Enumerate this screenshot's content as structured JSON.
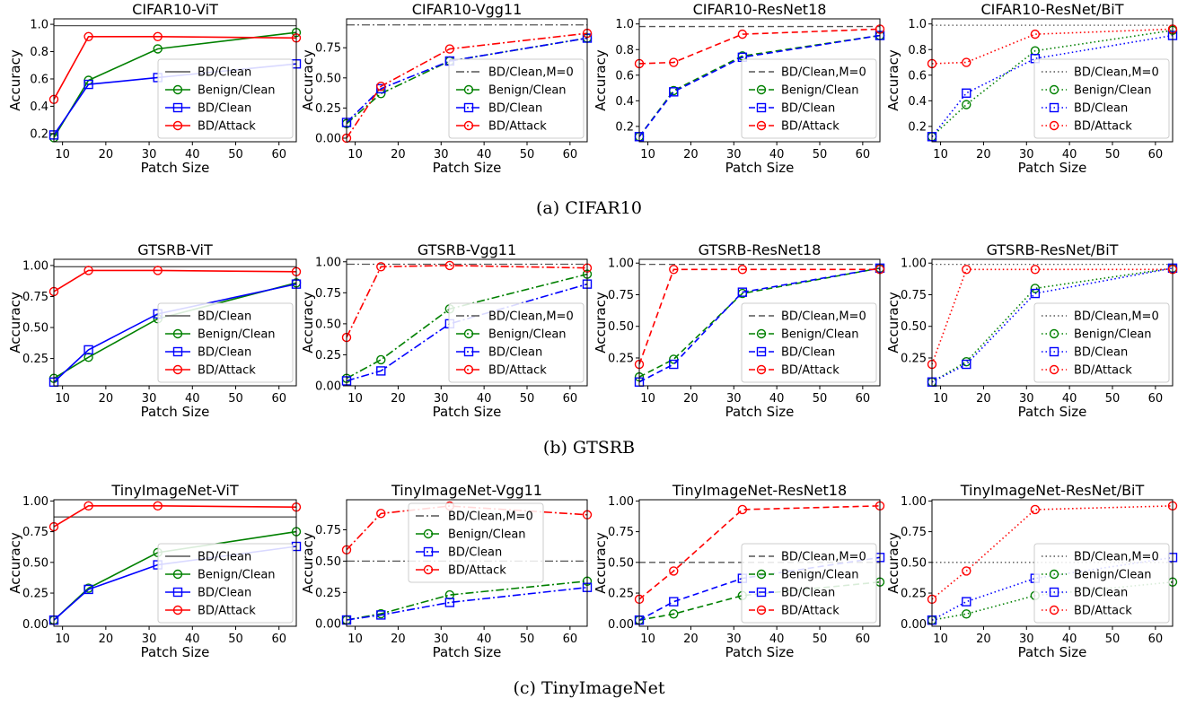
{
  "colors": {
    "clean_line": "#555555",
    "benign": "#008000",
    "bd_clean": "#0000ff",
    "bd_attack": "#ff0000"
  },
  "captions": [
    "(a) CIFAR10",
    "(b) GTSRB",
    "(c) TinyImageNet"
  ],
  "chart_data": [
    {
      "type": "line",
      "title": "CIFAR10-ViT",
      "xlabel": "Patch Size",
      "ylabel": "Accuracy",
      "xlim": [
        8,
        64
      ],
      "ylim": [
        0.14,
        1.04
      ],
      "yticks": [
        "0.2",
        "0.4",
        "0.6",
        "0.8",
        "1.0"
      ],
      "ytick_values": [
        0.2,
        0.4,
        0.6,
        0.8,
        1.0
      ],
      "xticks": [
        10,
        20,
        30,
        40,
        50,
        60
      ],
      "style": "solid",
      "legend": "lower-right",
      "clean_ref": {
        "name": "BD/Clean",
        "value": 0.99
      },
      "x": [
        8,
        16,
        32,
        64
      ],
      "series": [
        {
          "name": "Benign/Clean",
          "color": "benign",
          "marker": "circle",
          "values": [
            0.17,
            0.59,
            0.82,
            0.94
          ]
        },
        {
          "name": "BD/Clean",
          "color": "bd_clean",
          "marker": "square",
          "values": [
            0.19,
            0.56,
            0.61,
            0.71
          ]
        },
        {
          "name": "BD/Attack",
          "color": "bd_attack",
          "marker": "circle",
          "values": [
            0.45,
            0.91,
            0.91,
            0.9
          ]
        }
      ]
    },
    {
      "type": "line",
      "title": "CIFAR10-Vgg11",
      "xlabel": "Patch Size",
      "ylabel": "Accuracy",
      "xlim": [
        8,
        64
      ],
      "ylim": [
        -0.03,
        0.99
      ],
      "yticks": [
        "0.00",
        "0.25",
        "0.50",
        "0.75"
      ],
      "ytick_values": [
        0,
        0.25,
        0.5,
        0.75
      ],
      "xticks": [
        10,
        20,
        30,
        40,
        50,
        60
      ],
      "style": "dashdot",
      "legend": "lower-right",
      "clean_ref": {
        "name": "BD/Clean,M=0",
        "value": 0.94
      },
      "x": [
        8,
        16,
        32,
        64
      ],
      "series": [
        {
          "name": "Benign/Clean",
          "color": "benign",
          "marker": "circle",
          "values": [
            0.12,
            0.37,
            0.64,
            0.83
          ]
        },
        {
          "name": "BD/Clean",
          "color": "bd_clean",
          "marker": "square",
          "values": [
            0.13,
            0.41,
            0.64,
            0.83
          ]
        },
        {
          "name": "BD/Attack",
          "color": "bd_attack",
          "marker": "circle",
          "values": [
            0.0,
            0.43,
            0.74,
            0.87
          ]
        }
      ]
    },
    {
      "type": "line",
      "title": "CIFAR10-ResNet18",
      "xlabel": "Patch Size",
      "ylabel": "Accuracy",
      "xlim": [
        8,
        64
      ],
      "ylim": [
        0.08,
        1.04
      ],
      "yticks": [
        "0.2",
        "0.4",
        "0.6",
        "0.8",
        "1.0"
      ],
      "ytick_values": [
        0.2,
        0.4,
        0.6,
        0.8,
        1.0
      ],
      "xticks": [
        10,
        20,
        30,
        40,
        50,
        60
      ],
      "style": "dashed",
      "legend": "lower-right",
      "clean_ref": {
        "name": "BD/Clean,M=0",
        "value": 0.98
      },
      "x": [
        8,
        16,
        32,
        64
      ],
      "series": [
        {
          "name": "Benign/Clean",
          "color": "benign",
          "marker": "circle",
          "values": [
            0.12,
            0.48,
            0.75,
            0.91
          ]
        },
        {
          "name": "BD/Clean",
          "color": "bd_clean",
          "marker": "square",
          "values": [
            0.12,
            0.47,
            0.74,
            0.91
          ]
        },
        {
          "name": "BD/Attack",
          "color": "bd_attack",
          "marker": "circle",
          "values": [
            0.69,
            0.7,
            0.92,
            0.96
          ]
        }
      ]
    },
    {
      "type": "line",
      "title": "CIFAR10-ResNet/BiT",
      "xlabel": "Patch Size",
      "ylabel": "Accuracy",
      "xlim": [
        8,
        64
      ],
      "ylim": [
        0.08,
        1.04
      ],
      "yticks": [
        "0.2",
        "0.4",
        "0.6",
        "0.8",
        "1.0"
      ],
      "ytick_values": [
        0.2,
        0.4,
        0.6,
        0.8,
        1.0
      ],
      "xticks": [
        10,
        20,
        30,
        40,
        50,
        60
      ],
      "style": "dotted",
      "legend": "lower-right",
      "clean_ref": {
        "name": "BD/Clean,M=0",
        "value": 0.99
      },
      "x": [
        8,
        16,
        32,
        64
      ],
      "series": [
        {
          "name": "Benign/Clean",
          "color": "benign",
          "marker": "circle",
          "values": [
            0.12,
            0.37,
            0.79,
            0.95
          ]
        },
        {
          "name": "BD/Clean",
          "color": "bd_clean",
          "marker": "square",
          "values": [
            0.12,
            0.46,
            0.73,
            0.91
          ]
        },
        {
          "name": "BD/Attack",
          "color": "bd_attack",
          "marker": "circle",
          "values": [
            0.69,
            0.7,
            0.92,
            0.96
          ]
        }
      ]
    },
    {
      "type": "line",
      "title": "GTSRB-ViT",
      "xlabel": "Patch Size",
      "ylabel": "Accuracy",
      "xlim": [
        8,
        64
      ],
      "ylim": [
        0.03,
        1.05
      ],
      "yticks": [
        "0.25",
        "0.50",
        "0.75",
        "1.00"
      ],
      "ytick_values": [
        0.25,
        0.5,
        0.75,
        1.0
      ],
      "xticks": [
        10,
        20,
        30,
        40,
        50,
        60
      ],
      "style": "solid",
      "legend": "lower-right",
      "clean_ref": {
        "name": "BD/Clean",
        "value": 0.99
      },
      "x": [
        8,
        16,
        32,
        64
      ],
      "series": [
        {
          "name": "Benign/Clean",
          "color": "benign",
          "marker": "circle",
          "values": [
            0.09,
            0.26,
            0.57,
            0.86
          ]
        },
        {
          "name": "BD/Clean",
          "color": "bd_clean",
          "marker": "square",
          "values": [
            0.06,
            0.32,
            0.61,
            0.85
          ]
        },
        {
          "name": "BD/Attack",
          "color": "bd_attack",
          "marker": "circle",
          "values": [
            0.79,
            0.96,
            0.96,
            0.95
          ]
        }
      ]
    },
    {
      "type": "line",
      "title": "GTSRB-Vgg11",
      "xlabel": "Patch Size",
      "ylabel": "Accuracy",
      "xlim": [
        8,
        64
      ],
      "ylim": [
        0.0,
        1.02
      ],
      "yticks": [
        "0.00",
        "0.25",
        "0.50",
        "0.75",
        "1.00"
      ],
      "ytick_values": [
        0,
        0.25,
        0.5,
        0.75,
        1.0
      ],
      "xticks": [
        10,
        20,
        30,
        40,
        50,
        60
      ],
      "style": "dashdot",
      "legend": "lower-right",
      "clean_ref": {
        "name": "BD/Clean,M=0",
        "value": 0.98
      },
      "x": [
        8,
        16,
        32,
        64
      ],
      "series": [
        {
          "name": "Benign/Clean",
          "color": "benign",
          "marker": "circle",
          "values": [
            0.06,
            0.21,
            0.62,
            0.9
          ]
        },
        {
          "name": "BD/Clean",
          "color": "bd_clean",
          "marker": "square",
          "values": [
            0.04,
            0.12,
            0.5,
            0.82
          ]
        },
        {
          "name": "BD/Attack",
          "color": "bd_attack",
          "marker": "circle",
          "values": [
            0.39,
            0.96,
            0.97,
            0.95
          ]
        }
      ]
    },
    {
      "type": "line",
      "title": "GTSRB-ResNet18",
      "xlabel": "Patch Size",
      "ylabel": "Accuracy",
      "xlim": [
        8,
        64
      ],
      "ylim": [
        0.03,
        1.03
      ],
      "yticks": [
        "0.25",
        "0.50",
        "0.75",
        "1.00"
      ],
      "ytick_values": [
        0.25,
        0.5,
        0.75,
        1.0
      ],
      "xticks": [
        10,
        20,
        30,
        40,
        50,
        60
      ],
      "style": "dashed",
      "legend": "lower-right",
      "clean_ref": {
        "name": "BD/Clean,M=0",
        "value": 0.99
      },
      "x": [
        8,
        16,
        32,
        64
      ],
      "series": [
        {
          "name": "Benign/Clean",
          "color": "benign",
          "marker": "circle",
          "values": [
            0.1,
            0.24,
            0.76,
            0.96
          ]
        },
        {
          "name": "BD/Clean",
          "color": "bd_clean",
          "marker": "square",
          "values": [
            0.06,
            0.2,
            0.77,
            0.96
          ]
        },
        {
          "name": "BD/Attack",
          "color": "bd_attack",
          "marker": "circle",
          "values": [
            0.2,
            0.95,
            0.95,
            0.95
          ]
        }
      ]
    },
    {
      "type": "line",
      "title": "GTSRB-ResNet/BiT",
      "xlabel": "Patch Size",
      "ylabel": "Accuracy",
      "xlim": [
        8,
        64
      ],
      "ylim": [
        0.03,
        1.03
      ],
      "yticks": [
        "0.25",
        "0.50",
        "0.75",
        "1.00"
      ],
      "ytick_values": [
        0.25,
        0.5,
        0.75,
        1.0
      ],
      "xticks": [
        10,
        20,
        30,
        40,
        50,
        60
      ],
      "style": "dotted",
      "legend": "lower-right",
      "clean_ref": {
        "name": "BD/Clean,M=0",
        "value": 0.99
      },
      "x": [
        8,
        16,
        32,
        64
      ],
      "series": [
        {
          "name": "Benign/Clean",
          "color": "benign",
          "marker": "circle",
          "values": [
            0.06,
            0.22,
            0.8,
            0.96
          ]
        },
        {
          "name": "BD/Clean",
          "color": "bd_clean",
          "marker": "square",
          "values": [
            0.06,
            0.2,
            0.76,
            0.96
          ]
        },
        {
          "name": "BD/Attack",
          "color": "bd_attack",
          "marker": "circle",
          "values": [
            0.2,
            0.95,
            0.95,
            0.95
          ]
        }
      ]
    },
    {
      "type": "line",
      "title": "TinyImageNet-ViT",
      "xlabel": "Patch Size",
      "ylabel": "Accuracy",
      "xlim": [
        8,
        64
      ],
      "ylim": [
        -0.02,
        1.01
      ],
      "yticks": [
        "0.00",
        "0.25",
        "0.50",
        "0.75",
        "1.00"
      ],
      "ytick_values": [
        0,
        0.25,
        0.5,
        0.75,
        1.0
      ],
      "xticks": [
        10,
        20,
        30,
        40,
        50,
        60
      ],
      "style": "solid",
      "legend": "lower-right",
      "clean_ref": {
        "name": "BD/Clean",
        "value": 0.87
      },
      "x": [
        8,
        16,
        32,
        64
      ],
      "series": [
        {
          "name": "Benign/Clean",
          "color": "benign",
          "marker": "circle",
          "values": [
            0.03,
            0.29,
            0.58,
            0.75
          ]
        },
        {
          "name": "BD/Clean",
          "color": "bd_clean",
          "marker": "square",
          "values": [
            0.03,
            0.28,
            0.48,
            0.63
          ]
        },
        {
          "name": "BD/Attack",
          "color": "bd_attack",
          "marker": "circle",
          "values": [
            0.79,
            0.96,
            0.96,
            0.95
          ]
        }
      ]
    },
    {
      "type": "line",
      "title": "TinyImageNet-Vgg11",
      "xlabel": "Patch Size",
      "ylabel": "Accuracy",
      "xlim": [
        8,
        64
      ],
      "ylim": [
        -0.02,
        0.99
      ],
      "yticks": [
        "0.00",
        "0.25",
        "0.50",
        "0.75"
      ],
      "ytick_values": [
        0,
        0.25,
        0.5,
        0.75
      ],
      "xticks": [
        10,
        20,
        30,
        40,
        50,
        60
      ],
      "style": "dashdot",
      "legend": "upper-center",
      "clean_ref": {
        "name": "BD/Clean,M=0",
        "value": 0.5
      },
      "x": [
        8,
        16,
        32,
        64
      ],
      "series": [
        {
          "name": "Benign/Clean",
          "color": "benign",
          "marker": "circle",
          "values": [
            0.03,
            0.08,
            0.23,
            0.34
          ]
        },
        {
          "name": "BD/Clean",
          "color": "bd_clean",
          "marker": "square",
          "values": [
            0.03,
            0.07,
            0.17,
            0.29
          ]
        },
        {
          "name": "BD/Attack",
          "color": "bd_attack",
          "marker": "circle",
          "values": [
            0.59,
            0.88,
            0.94,
            0.87
          ]
        }
      ]
    },
    {
      "type": "line",
      "title": "TinyImageNet-ResNet18",
      "xlabel": "Patch Size",
      "ylabel": "Accuracy",
      "xlim": [
        8,
        64
      ],
      "ylim": [
        -0.02,
        1.01
      ],
      "yticks": [
        "0.00",
        "0.25",
        "0.50",
        "0.75",
        "1.00"
      ],
      "ytick_values": [
        0,
        0.25,
        0.5,
        0.75,
        1.0
      ],
      "xticks": [
        10,
        20,
        30,
        40,
        50,
        60
      ],
      "style": "dashed",
      "legend": "lower-right",
      "clean_ref": {
        "name": "BD/Clean,M=0",
        "value": 0.5
      },
      "x": [
        8,
        16,
        32,
        64
      ],
      "series": [
        {
          "name": "Benign/Clean",
          "color": "benign",
          "marker": "circle",
          "values": [
            0.03,
            0.08,
            0.23,
            0.34
          ]
        },
        {
          "name": "BD/Clean",
          "color": "bd_clean",
          "marker": "square",
          "values": [
            0.03,
            0.18,
            0.37,
            0.54
          ]
        },
        {
          "name": "BD/Attack",
          "color": "bd_attack",
          "marker": "circle",
          "values": [
            0.2,
            0.43,
            0.93,
            0.96
          ]
        }
      ]
    },
    {
      "type": "line",
      "title": "TinyImageNet-ResNet/BiT",
      "xlabel": "Patch Size",
      "ylabel": "Accuracy",
      "xlim": [
        8,
        64
      ],
      "ylim": [
        -0.02,
        1.01
      ],
      "yticks": [
        "0.00",
        "0.25",
        "0.50",
        "0.75",
        "1.00"
      ],
      "ytick_values": [
        0,
        0.25,
        0.5,
        0.75,
        1.0
      ],
      "xticks": [
        10,
        20,
        30,
        40,
        50,
        60
      ],
      "style": "dotted",
      "legend": "lower-right",
      "clean_ref": {
        "name": "BD/Clean,M=0",
        "value": 0.5
      },
      "x": [
        8,
        16,
        32,
        64
      ],
      "series": [
        {
          "name": "Benign/Clean",
          "color": "benign",
          "marker": "circle",
          "values": [
            0.03,
            0.08,
            0.23,
            0.34
          ]
        },
        {
          "name": "BD/Clean",
          "color": "bd_clean",
          "marker": "square",
          "values": [
            0.03,
            0.18,
            0.37,
            0.54
          ]
        },
        {
          "name": "BD/Attack",
          "color": "bd_attack",
          "marker": "circle",
          "values": [
            0.2,
            0.43,
            0.93,
            0.96
          ]
        }
      ]
    }
  ]
}
